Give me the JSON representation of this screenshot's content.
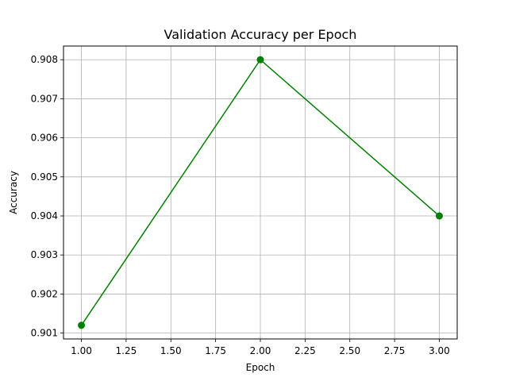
{
  "chart_data": {
    "type": "line",
    "title": "Validation Accuracy per Epoch",
    "xlabel": "Epoch",
    "ylabel": "Accuracy",
    "xlim": [
      0.9,
      3.1
    ],
    "ylim": [
      0.90085,
      0.90835
    ],
    "x_ticks": [
      1.0,
      1.25,
      1.5,
      1.75,
      2.0,
      2.25,
      2.5,
      2.75,
      3.0
    ],
    "x_tick_labels": [
      "1.00",
      "1.25",
      "1.50",
      "1.75",
      "2.00",
      "2.25",
      "2.50",
      "2.75",
      "3.00"
    ],
    "y_ticks": [
      0.901,
      0.902,
      0.903,
      0.904,
      0.905,
      0.906,
      0.907,
      0.908
    ],
    "y_tick_labels": [
      "0.901",
      "0.902",
      "0.903",
      "0.904",
      "0.905",
      "0.906",
      "0.907",
      "0.908"
    ],
    "grid": true,
    "series": [
      {
        "color": "#008000",
        "marker": "circle",
        "x": [
          1.0,
          2.0,
          3.0
        ],
        "y": [
          0.9012,
          0.908,
          0.904
        ]
      }
    ]
  }
}
